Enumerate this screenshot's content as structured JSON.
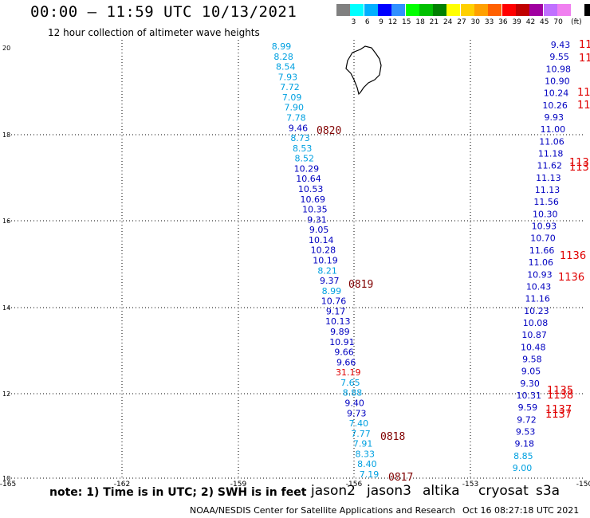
{
  "title": "00:00 – 11:59 UTC 10/13/2021",
  "subtitle": "12 hour collection of altimeter wave heights",
  "legend": {
    "unit": "(ft)",
    "colors": [
      "#808080",
      "#00ffff",
      "#00b0ff",
      "#0000ff",
      "#3090ff",
      "#00ff00",
      "#00c000",
      "#008000",
      "#ffff00",
      "#ffd000",
      "#ffa000",
      "#ff6000",
      "#ff0000",
      "#c00000",
      "#a000a0",
      "#c070ff",
      "#f080f0",
      "#ffffff",
      "#000000"
    ],
    "labels": [
      "3",
      "6",
      "9",
      "12",
      "15",
      "18",
      "21",
      "24",
      "27",
      "30",
      "33",
      "36",
      "39",
      "42",
      "45",
      "70"
    ]
  },
  "axes": {
    "x_ticks": [
      "-165",
      "-162",
      "-159",
      "-156",
      "-153",
      "-150"
    ],
    "y_ticks": [
      "20",
      "18",
      "16",
      "14",
      "12",
      "10"
    ]
  },
  "track_times": [
    {
      "label": "0820",
      "color": "#800000"
    },
    {
      "label": "0819",
      "color": "#800000"
    },
    {
      "label": "0818",
      "color": "#800000"
    },
    {
      "label": "0817",
      "color": "#800000"
    }
  ],
  "track_left": [
    {
      "v": "8.99",
      "c": "#00a0e0"
    },
    {
      "v": "8.28",
      "c": "#00a0e0"
    },
    {
      "v": "8.54",
      "c": "#00a0e0"
    },
    {
      "v": "7.93",
      "c": "#00a0e0"
    },
    {
      "v": "7.72",
      "c": "#00a0e0"
    },
    {
      "v": "7.09",
      "c": "#00a0e0"
    },
    {
      "v": "7.90",
      "c": "#00a0e0"
    },
    {
      "v": "7.78",
      "c": "#00a0e0"
    },
    {
      "v": "9.46",
      "c": "#0000c0"
    },
    {
      "v": "8.73",
      "c": "#00a0e0"
    },
    {
      "v": "8.53",
      "c": "#00a0e0"
    },
    {
      "v": "8.52",
      "c": "#00a0e0"
    },
    {
      "v": "10.29",
      "c": "#0000c0"
    },
    {
      "v": "10.64",
      "c": "#0000c0"
    },
    {
      "v": "10.53",
      "c": "#0000c0"
    },
    {
      "v": "10.69",
      "c": "#0000c0"
    },
    {
      "v": "10.35",
      "c": "#0000c0"
    },
    {
      "v": "9.31",
      "c": "#0000c0"
    },
    {
      "v": "9.05",
      "c": "#0000c0"
    },
    {
      "v": "10.14",
      "c": "#0000c0"
    },
    {
      "v": "10.28",
      "c": "#0000c0"
    },
    {
      "v": "10.19",
      "c": "#0000c0"
    },
    {
      "v": "8.21",
      "c": "#00a0e0"
    },
    {
      "v": "9.37",
      "c": "#0000c0"
    },
    {
      "v": "8.99",
      "c": "#00a0e0"
    },
    {
      "v": "10.76",
      "c": "#0000c0"
    },
    {
      "v": "9.17",
      "c": "#0000c0"
    },
    {
      "v": "10.13",
      "c": "#0000c0"
    },
    {
      "v": "9.89",
      "c": "#0000c0"
    },
    {
      "v": "10.91",
      "c": "#0000c0"
    },
    {
      "v": "9.66",
      "c": "#0000c0"
    },
    {
      "v": "9.66",
      "c": "#0000c0"
    },
    {
      "v": "31.19",
      "c": "#e00000"
    },
    {
      "v": "7.65",
      "c": "#00a0e0"
    },
    {
      "v": "8.88",
      "c": "#00a0e0"
    },
    {
      "v": "9.40",
      "c": "#0000c0"
    },
    {
      "v": "9.73",
      "c": "#0000c0"
    },
    {
      "v": "7.40",
      "c": "#00a0e0"
    },
    {
      "v": "7.77",
      "c": "#00a0e0"
    },
    {
      "v": "7.91",
      "c": "#00a0e0"
    },
    {
      "v": "8.33",
      "c": "#00a0e0"
    },
    {
      "v": "8.40",
      "c": "#00a0e0"
    },
    {
      "v": "7.19",
      "c": "#00a0e0"
    }
  ],
  "track_right": [
    {
      "v": "9.43",
      "c": "#0000c0"
    },
    {
      "v": "9.55",
      "c": "#0000c0"
    },
    {
      "v": "10.98",
      "c": "#0000c0"
    },
    {
      "v": "10.90",
      "c": "#0000c0"
    },
    {
      "v": "10.24",
      "c": "#0000c0"
    },
    {
      "v": "10.26",
      "c": "#0000c0"
    },
    {
      "v": "9.93",
      "c": "#0000c0"
    },
    {
      "v": "11.00",
      "c": "#0000c0"
    },
    {
      "v": "11.06",
      "c": "#0000c0"
    },
    {
      "v": "11.18",
      "c": "#0000c0"
    },
    {
      "v": "11.62",
      "c": "#0000c0"
    },
    {
      "v": "11.13",
      "c": "#0000c0"
    },
    {
      "v": "11.13",
      "c": "#0000c0"
    },
    {
      "v": "11.56",
      "c": "#0000c0"
    },
    {
      "v": "10.30",
      "c": "#0000c0"
    },
    {
      "v": "10.93",
      "c": "#0000c0"
    },
    {
      "v": "10.70",
      "c": "#0000c0"
    },
    {
      "v": "11.66",
      "c": "#0000c0"
    },
    {
      "v": "11.06",
      "c": "#0000c0"
    },
    {
      "v": "10.93",
      "c": "#0000c0"
    },
    {
      "v": "10.43",
      "c": "#0000c0"
    },
    {
      "v": "11.16",
      "c": "#0000c0"
    },
    {
      "v": "10.23",
      "c": "#0000c0"
    },
    {
      "v": "10.08",
      "c": "#0000c0"
    },
    {
      "v": "10.87",
      "c": "#0000c0"
    },
    {
      "v": "10.48",
      "c": "#0000c0"
    },
    {
      "v": "9.58",
      "c": "#0000c0"
    },
    {
      "v": "9.05",
      "c": "#0000c0"
    },
    {
      "v": "9.30",
      "c": "#0000c0"
    },
    {
      "v": "10.31",
      "c": "#0000c0"
    },
    {
      "v": "9.59",
      "c": "#0000c0"
    },
    {
      "v": "9.72",
      "c": "#0000c0"
    },
    {
      "v": "9.53",
      "c": "#0000c0"
    },
    {
      "v": "9.18",
      "c": "#0000c0"
    },
    {
      "v": "8.85",
      "c": "#00a0e0"
    },
    {
      "v": "9.00",
      "c": "#00a0e0"
    }
  ],
  "track_edge": [
    {
      "v": "11",
      "c": "#e00000"
    },
    {
      "v": "11",
      "c": "#e00000"
    },
    {
      "v": "11",
      "c": "#e00000"
    },
    {
      "v": "11",
      "c": "#e00000"
    },
    {
      "v": "113",
      "c": "#e00000"
    },
    {
      "v": "113",
      "c": "#e00000"
    },
    {
      "v": "1136",
      "c": "#e00000"
    },
    {
      "v": "1136",
      "c": "#e00000"
    },
    {
      "v": "1135",
      "c": "#e00000"
    },
    {
      "v": "1138",
      "c": "#e00000"
    },
    {
      "v": "1137",
      "c": "#e00000"
    },
    {
      "v": "1137",
      "c": "#e00000"
    }
  ],
  "footer": {
    "note": "note: 1) Time is in UTC; 2) SWH is in feet",
    "satellites": [
      {
        "name": "jason2",
        "color": "#0000c0"
      },
      {
        "name": "jason3",
        "color": "#00a000"
      },
      {
        "name": "altika",
        "color": "#ff8000"
      },
      {
        "name": "cryosat",
        "color": "#e00000"
      },
      {
        "name": "s3a",
        "color": "#e00000"
      }
    ],
    "credit": "NOAA/NESDIS Center for Satellite Applications and Research",
    "timestamp": "Oct 16 08:27:18 UTC 2021"
  }
}
